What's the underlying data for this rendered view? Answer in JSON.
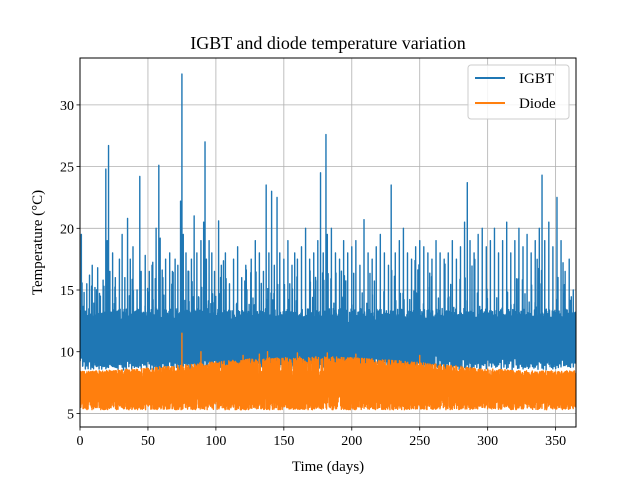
{
  "chart_data": {
    "type": "line",
    "title": "IGBT and diode temperature variation",
    "xlabel": "Time (days)",
    "ylabel": "Temperature (°C)",
    "xlim": [
      0,
      365
    ],
    "ylim": [
      3.9,
      33.8
    ],
    "xticks": [
      0,
      50,
      100,
      150,
      200,
      250,
      300,
      350
    ],
    "yticks": [
      5,
      10,
      15,
      20,
      25,
      30
    ],
    "grid": true,
    "legend_position": "top-right",
    "series": [
      {
        "name": "IGBT",
        "color": "#1f77b4",
        "sampling": "hourly",
        "base_range": [
          9.0,
          13.0
        ],
        "x": [
          1,
          3,
          5,
          7,
          9,
          11,
          13,
          15,
          17,
          19,
          20,
          21,
          22,
          24,
          26,
          29,
          31,
          33,
          35,
          37,
          39,
          42,
          44,
          45,
          48,
          51,
          53,
          56,
          58,
          59,
          61,
          63,
          66,
          68,
          70,
          72,
          74,
          75,
          76,
          78,
          80,
          82,
          84,
          86,
          89,
          91,
          92,
          93,
          95,
          97,
          99,
          102,
          104,
          107,
          110,
          113,
          116,
          119,
          122,
          126,
          129,
          132,
          135,
          137,
          139,
          141,
          143,
          145,
          147,
          150,
          153,
          156,
          158,
          160,
          163,
          166,
          169,
          172,
          175,
          177,
          179,
          181,
          182,
          185,
          188,
          191,
          194,
          197,
          200,
          203,
          206,
          209,
          212,
          215,
          218,
          221,
          224,
          227,
          229,
          232,
          235,
          238,
          241,
          244,
          247,
          250,
          253,
          256,
          259,
          262,
          265,
          268,
          271,
          274,
          277,
          280,
          283,
          285,
          287,
          290,
          293,
          296,
          299,
          302,
          305,
          308,
          311,
          314,
          317,
          320,
          323,
          326,
          329,
          332,
          335,
          338,
          340,
          342,
          345,
          348,
          351,
          354,
          357,
          360,
          363
        ],
        "peaks": [
          19.5,
          14.8,
          15.5,
          16.2,
          17.0,
          15.2,
          16.8,
          14.5,
          15.8,
          24.8,
          19.0,
          26.7,
          16.5,
          18.0,
          16.0,
          17.5,
          19.5,
          16.0,
          20.8,
          17.5,
          18.5,
          15.0,
          24.2,
          16.5,
          17.8,
          16.5,
          17.0,
          20.0,
          25.1,
          19.2,
          16.0,
          17.5,
          18.0,
          16.5,
          17.5,
          17.0,
          22.2,
          32.5,
          19.5,
          18.0,
          16.5,
          17.5,
          21.0,
          18.0,
          19.0,
          20.5,
          27.0,
          17.5,
          19.0,
          18.0,
          16.5,
          20.6,
          17.0,
          18.0,
          15.5,
          17.5,
          18.5,
          16.0,
          17.0,
          17.5,
          19.0,
          18.0,
          16.5,
          23.5,
          18.0,
          23.0,
          17.0,
          22.5,
          18.0,
          17.5,
          19.0,
          17.0,
          18.0,
          17.5,
          18.5,
          20.0,
          17.5,
          18.0,
          19.0,
          24.5,
          18.0,
          27.6,
          19.5,
          20.0,
          18.0,
          17.5,
          19.0,
          18.0,
          18.5,
          19.0,
          17.0,
          20.7,
          18.0,
          17.5,
          18.5,
          19.5,
          18.0,
          17.0,
          23.5,
          18.0,
          19.0,
          20.0,
          18.0,
          17.5,
          18.5,
          19.0,
          18.5,
          18.0,
          17.5,
          19.0,
          18.0,
          17.5,
          18.0,
          19.0,
          17.5,
          18.5,
          20.5,
          23.7,
          19.0,
          18.0,
          19.5,
          20.0,
          18.5,
          19.0,
          20.0,
          18.0,
          19.0,
          20.5,
          18.0,
          19.0,
          20.0,
          18.5,
          19.5,
          18.0,
          19.0,
          20.0,
          24.3,
          19.0,
          20.5,
          18.5,
          22.5,
          19.0,
          16.5,
          17.5,
          15.0
        ]
      },
      {
        "name": "Diode",
        "color": "#ff7f0e",
        "sampling": "hourly",
        "base_range": [
          5.3,
          9.0
        ],
        "x": [
          75,
          89,
          120,
          132,
          138,
          160,
          182,
          203,
          250
        ],
        "peaks": [
          11.5,
          10.0,
          9.7,
          9.8,
          10.0,
          9.9,
          9.9,
          9.8,
          9.7
        ]
      }
    ]
  }
}
